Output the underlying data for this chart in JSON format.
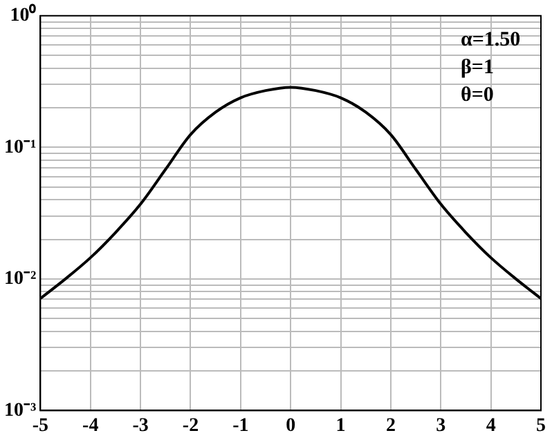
{
  "chart_data": {
    "type": "line",
    "x": [
      -5,
      -4.5,
      -4,
      -3.5,
      -3,
      -2.5,
      -2,
      -1.5,
      -1,
      -0.5,
      0,
      0.5,
      1,
      1.5,
      2,
      2.5,
      3,
      3.5,
      4,
      4.5,
      5
    ],
    "series": [
      {
        "color": "#000000",
        "values": [
          0.0071,
          0.01,
          0.0145,
          0.0225,
          0.037,
          0.068,
          0.125,
          0.185,
          0.238,
          0.27,
          0.286,
          0.27,
          0.238,
          0.185,
          0.125,
          0.068,
          0.037,
          0.0225,
          0.0145,
          0.01,
          0.0071
        ]
      }
    ],
    "log": "y",
    "xlim": [
      -5,
      5
    ],
    "xticks": [
      -5,
      -4,
      -3,
      -2,
      -1,
      0,
      1,
      2,
      3,
      4,
      5
    ],
    "ylim": [
      0.001,
      1
    ],
    "yticks": [
      {
        "value": 0.001,
        "label": "10⁻³"
      },
      {
        "value": 0.002,
        "label": null
      },
      {
        "value": 0.003,
        "label": null
      },
      {
        "value": 0.004,
        "label": null
      },
      {
        "value": 0.005,
        "label": null
      },
      {
        "value": 0.006,
        "label": null
      },
      {
        "value": 0.007,
        "label": null
      },
      {
        "value": 0.008,
        "label": null
      },
      {
        "value": 0.009,
        "label": null
      },
      {
        "value": 0.01,
        "label": "10⁻²"
      },
      {
        "value": 0.02,
        "label": null
      },
      {
        "value": 0.03,
        "label": null
      },
      {
        "value": 0.04,
        "label": null
      },
      {
        "value": 0.05,
        "label": null
      },
      {
        "value": 0.06,
        "label": null
      },
      {
        "value": 0.07,
        "label": null
      },
      {
        "value": 0.08,
        "label": null
      },
      {
        "value": 0.09,
        "label": null
      },
      {
        "value": 0.1,
        "label": "10⁻¹"
      },
      {
        "value": 0.2,
        "label": null
      },
      {
        "value": 0.3,
        "label": null
      },
      {
        "value": 0.4,
        "label": null
      },
      {
        "value": 0.5,
        "label": null
      },
      {
        "value": 0.6,
        "label": null
      },
      {
        "value": 0.7,
        "label": null
      },
      {
        "value": 0.8,
        "label": null
      },
      {
        "value": 0.9,
        "label": null
      },
      {
        "value": 1,
        "label": "10⁰"
      }
    ],
    "grid": true,
    "legend": false,
    "marker": "none",
    "line_style": "solid",
    "annotations": [
      "α=1.50",
      "β=1",
      "θ=0"
    ]
  }
}
